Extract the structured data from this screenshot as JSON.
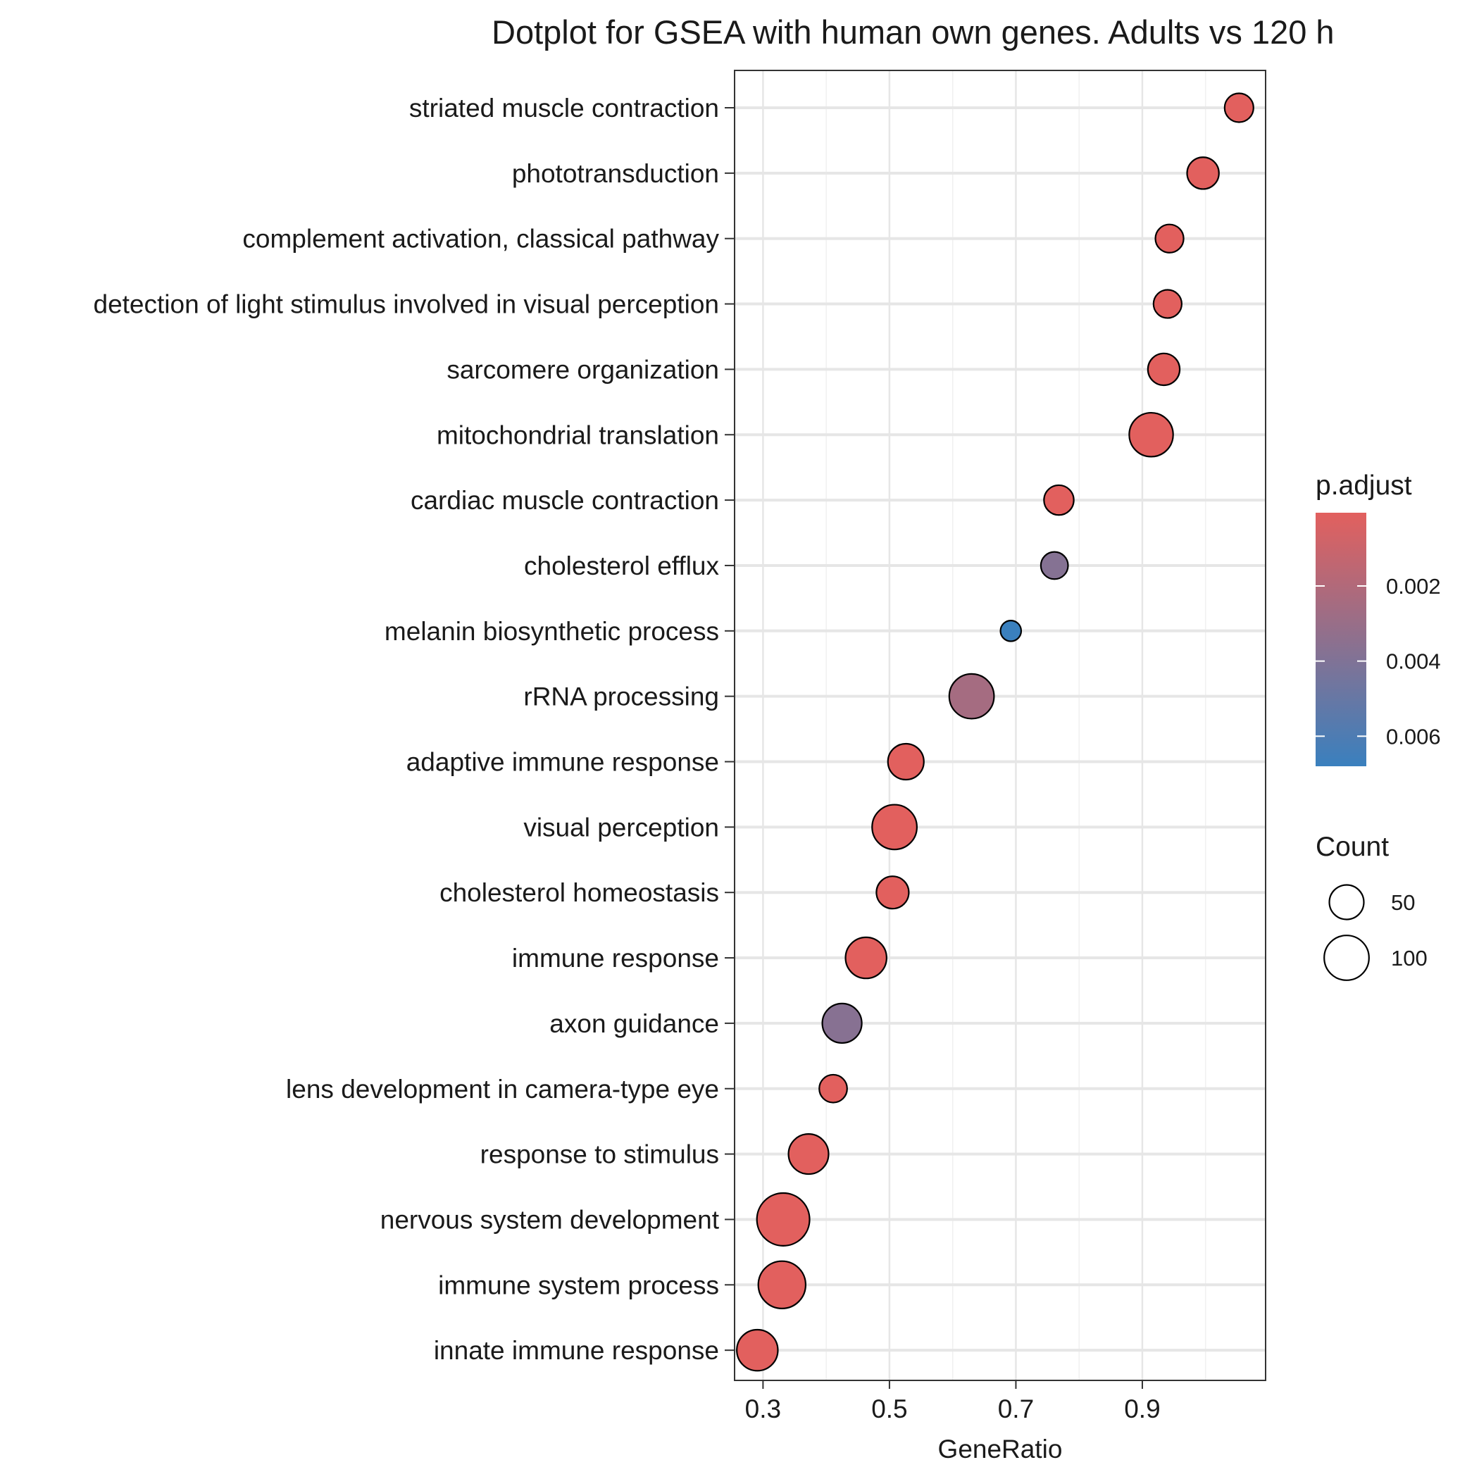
{
  "chart_data": {
    "type": "scatter",
    "subtype": "dotplot",
    "title": "Dotplot for GSEA with human own genes. Adults vs 120 h",
    "xlabel": "GeneRatio",
    "ylabel": "",
    "xlim": [
      0.255,
      1.095
    ],
    "xticks": [
      0.3,
      0.5,
      0.7,
      0.9
    ],
    "xtick_labels": [
      "0.3",
      "0.5",
      "0.7",
      "0.9"
    ],
    "grid": true,
    "categories": [
      "striated muscle contraction",
      "phototransduction",
      "complement activation, classical pathway",
      "detection of light stimulus involved in visual perception",
      "sarcomere organization",
      "mitochondrial translation",
      "cardiac muscle contraction",
      "cholesterol efflux",
      "melanin biosynthetic process",
      "rRNA processing",
      "adaptive immune response",
      "visual perception",
      "cholesterol homeostasis",
      "immune response",
      "axon guidance",
      "lens development in camera-type eye",
      "response to stimulus",
      "nervous system development",
      "immune system process",
      "innate immune response"
    ],
    "gene_ratio": [
      1.053,
      0.996,
      0.943,
      0.94,
      0.934,
      0.914,
      0.768,
      0.761,
      0.692,
      0.63,
      0.526,
      0.508,
      0.505,
      0.463,
      0.425,
      0.411,
      0.372,
      0.332,
      0.33,
      0.291
    ],
    "count": [
      30,
      40,
      28,
      28,
      40,
      95,
      33,
      25,
      10,
      100,
      56,
      100,
      42,
      80,
      72,
      27,
      75,
      150,
      115,
      80
    ],
    "p_adjust": [
      5e-05,
      5e-05,
      5e-05,
      5e-05,
      5e-05,
      5e-05,
      5e-05,
      0.0038,
      0.0068,
      0.0025,
      5e-05,
      5e-05,
      5e-05,
      5e-05,
      0.0037,
      5e-05,
      5e-05,
      5e-05,
      5e-05,
      5e-05
    ],
    "color_legend": {
      "title": "p.adjust",
      "range": [
        5e-05,
        0.0068
      ],
      "ticks": [
        0.002,
        0.004,
        0.006
      ],
      "tick_labels": [
        "0.002",
        "0.004",
        "0.006"
      ],
      "low_color": "#E2605E",
      "high_color": "#3A80BE"
    },
    "size_legend": {
      "title": "Count",
      "values": [
        50,
        100
      ],
      "labels": [
        "50",
        "100"
      ]
    },
    "legend_position": "right"
  }
}
